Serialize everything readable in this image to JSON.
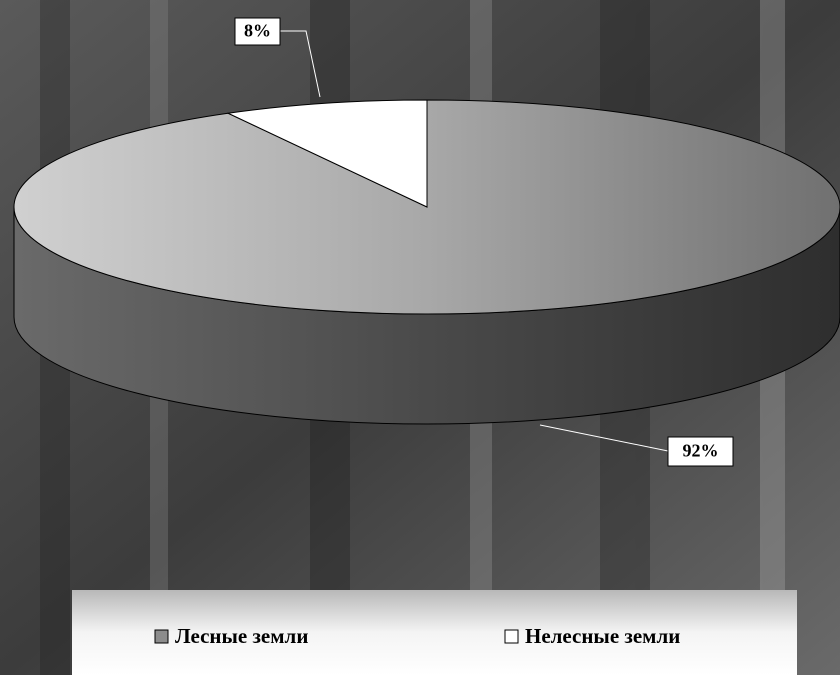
{
  "chart_data": {
    "type": "pie",
    "categories": [
      "Лесные земли",
      "Нелесные земли"
    ],
    "values": [
      92,
      8
    ],
    "value_labels": [
      "92%",
      "8%"
    ],
    "colors": [
      "#8c8c8c",
      "#ffffff"
    ],
    "legend": "bottom"
  }
}
